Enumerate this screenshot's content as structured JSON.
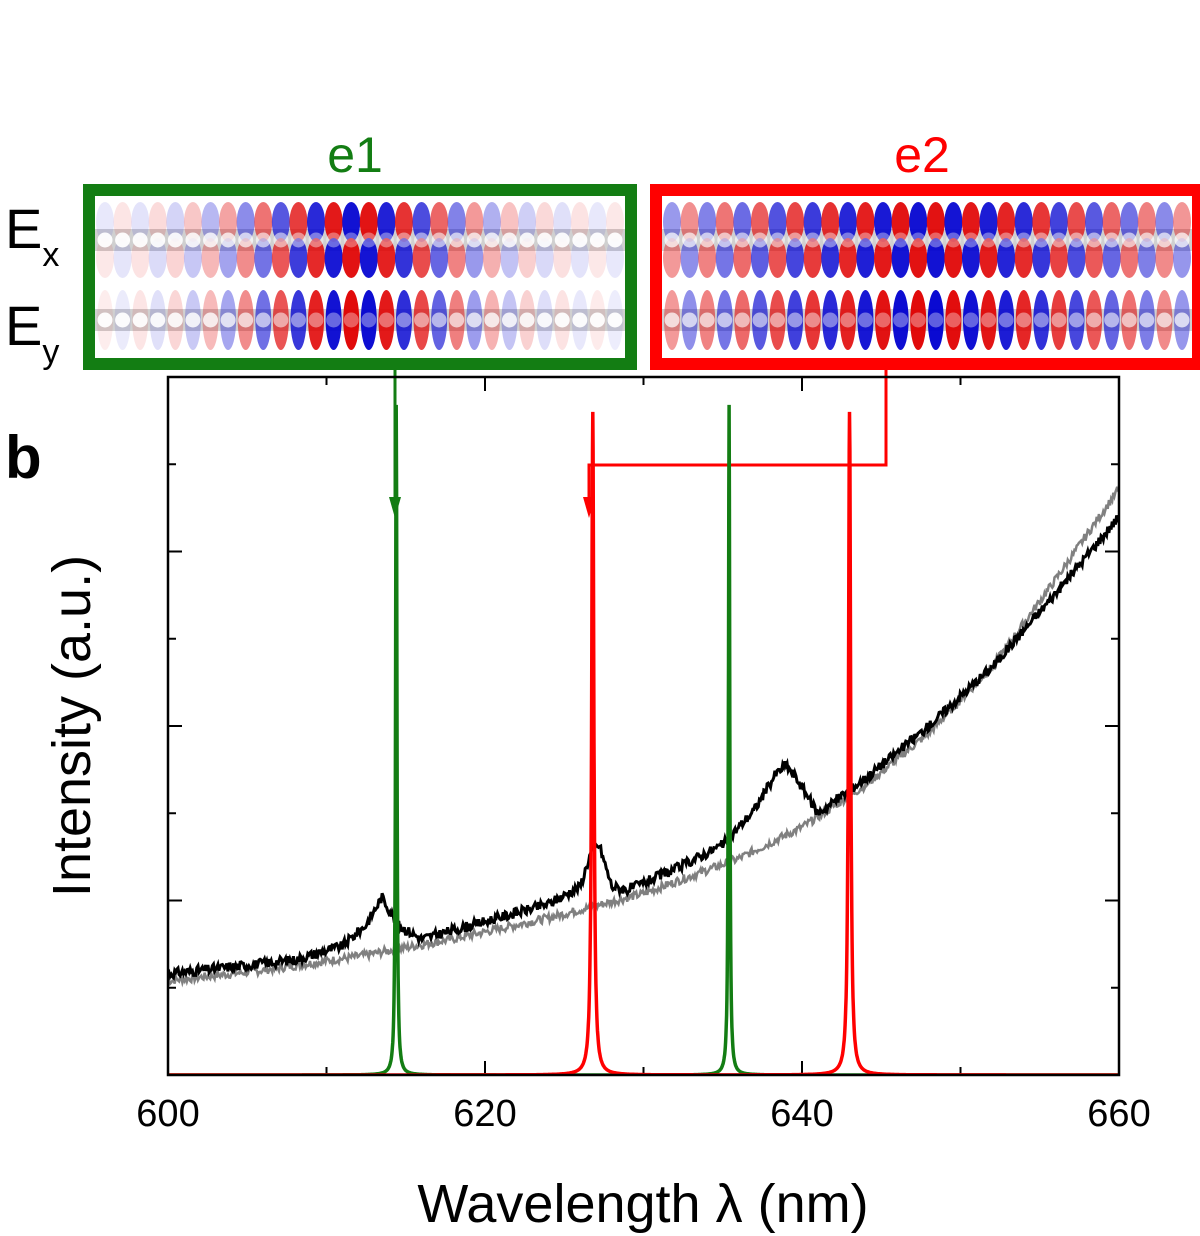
{
  "figure": {
    "panel_label": "b",
    "row_labels": {
      "ex": {
        "base": "E",
        "sub": "x"
      },
      "ey": {
        "base": "E",
        "sub": "y"
      }
    },
    "insets": [
      {
        "label": "e1",
        "color": "#137d13"
      },
      {
        "label": "e2",
        "color": "#ff0000"
      }
    ]
  },
  "chart_data": {
    "type": "line",
    "xlabel": "Wavelength λ (nm)",
    "ylabel": "Intensity (a.u.)",
    "xlim": [
      600,
      660
    ],
    "ylim": [
      0,
      1
    ],
    "xticks": [
      600,
      620,
      640,
      660
    ],
    "x_tick_labels": [
      "600",
      "620",
      "640",
      "660"
    ],
    "colors": {
      "measured_on": "#000000",
      "measured_off": "#808080",
      "sim_e1": "#137d13",
      "sim_e2": "#ff0000"
    },
    "measured_on": {
      "x": [
        600,
        604,
        608,
        611,
        612.5,
        613.5,
        614.5,
        616,
        620,
        624,
        626,
        626.7,
        627.2,
        628,
        629,
        632,
        635,
        637,
        638.3,
        639,
        639.8,
        641,
        644,
        648,
        652,
        656,
        660
      ],
      "y": [
        0.145,
        0.155,
        0.165,
        0.185,
        0.215,
        0.255,
        0.215,
        0.195,
        0.22,
        0.245,
        0.27,
        0.32,
        0.33,
        0.27,
        0.265,
        0.295,
        0.33,
        0.38,
        0.43,
        0.445,
        0.42,
        0.375,
        0.425,
        0.5,
        0.585,
        0.69,
        0.8
      ]
    },
    "measured_off": {
      "x": [
        600,
        606,
        612,
        618,
        624,
        630,
        636,
        640,
        644,
        648,
        652,
        656,
        660
      ],
      "y": [
        0.135,
        0.15,
        0.17,
        0.195,
        0.225,
        0.26,
        0.31,
        0.355,
        0.415,
        0.49,
        0.585,
        0.71,
        0.84
      ]
    },
    "simulated_e1": {
      "peaks": [
        614.4,
        635.4
      ],
      "height": 0.96
    },
    "simulated_e2": {
      "peaks": [
        626.8,
        643.0
      ],
      "height": 0.95
    }
  }
}
